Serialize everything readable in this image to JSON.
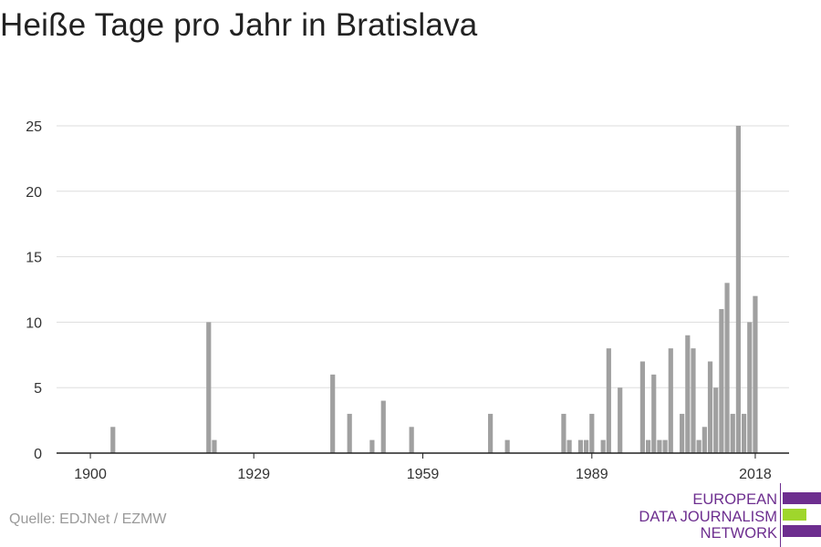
{
  "title": "Heiße Tage pro Jahr in Bratislava",
  "source": "Quelle: EDJNet / EZMW",
  "logo": {
    "lines": [
      "EUROPEAN",
      "DATA JOURNALISM",
      "NETWORK"
    ],
    "colors": [
      "#6d2e8f",
      "#9fd62c",
      "#6d2e8f"
    ]
  },
  "colors": {
    "bar": "#a0a0a0",
    "grid": "#dddddd",
    "axis": "#222222",
    "text": "#333333"
  },
  "chart_data": {
    "type": "bar",
    "title": "Heiße Tage pro Jahr in Bratislava",
    "xlabel": "",
    "ylabel": "",
    "xlim": [
      1894,
      2024
    ],
    "ylim": [
      0,
      25
    ],
    "yticks": [
      0,
      5,
      10,
      15,
      20,
      25
    ],
    "xticks": [
      1900,
      1929,
      1959,
      1989,
      2018
    ],
    "grid": true,
    "series": [
      {
        "x": [
          1904,
          1921,
          1922,
          1943,
          1946,
          1950,
          1952,
          1957,
          1971,
          1974,
          1984,
          1985,
          1987,
          1988,
          1989,
          1991,
          1992,
          1994,
          1998,
          1999,
          2000,
          2001,
          2002,
          2003,
          2005,
          2006,
          2007,
          2008,
          2009,
          2010,
          2011,
          2012,
          2013,
          2014,
          2015,
          2016,
          2017,
          2018
        ],
        "values": [
          2,
          10,
          1,
          6,
          3,
          1,
          4,
          2,
          3,
          1,
          3,
          1,
          1,
          1,
          3,
          1,
          8,
          5,
          7,
          1,
          6,
          1,
          1,
          8,
          3,
          9,
          8,
          1,
          2,
          7,
          5,
          11,
          13,
          3,
          25,
          3,
          10,
          12
        ]
      }
    ]
  }
}
